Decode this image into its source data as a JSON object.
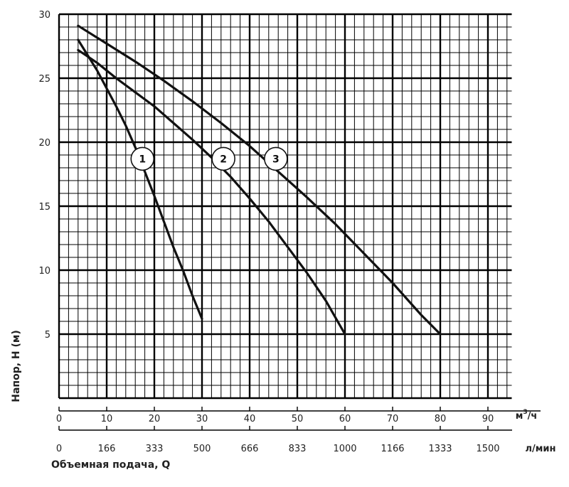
{
  "chart_data": {
    "type": "line",
    "title": "",
    "ylabel": "Напор, Н (м)",
    "xlabel": "Объемная подача, Q",
    "x_unit_primary": "м³/ч",
    "x_unit_primary_base": "м",
    "x_unit_primary_exp": "3",
    "x_unit_primary_tail": "/ч",
    "x_unit_secondary": "л/мин",
    "xlim": [
      0,
      95
    ],
    "ylim": [
      0,
      30
    ],
    "grid": true,
    "x_ticks_primary": [
      0,
      10,
      20,
      30,
      40,
      50,
      60,
      70,
      80,
      90
    ],
    "x_ticks_secondary": [
      {
        "x": 0,
        "label": "0"
      },
      {
        "x": 10,
        "label": "166"
      },
      {
        "x": 20,
        "label": "333"
      },
      {
        "x": 30,
        "label": "500"
      },
      {
        "x": 40,
        "label": "666"
      },
      {
        "x": 50,
        "label": "833"
      },
      {
        "x": 60,
        "label": "1000"
      },
      {
        "x": 70,
        "label": "1166"
      },
      {
        "x": 80,
        "label": "1333"
      },
      {
        "x": 90,
        "label": "1500"
      }
    ],
    "y_ticks": [
      5,
      10,
      15,
      20,
      25,
      30
    ],
    "series": [
      {
        "name": "1",
        "label_at": [
          17.5,
          18.7
        ],
        "points": [
          [
            4,
            28.0
          ],
          [
            6,
            26.8
          ],
          [
            8,
            25.6
          ],
          [
            10,
            24.2
          ],
          [
            12,
            22.8
          ],
          [
            14,
            21.3
          ],
          [
            16,
            19.6
          ],
          [
            18,
            17.7
          ],
          [
            20,
            15.8
          ],
          [
            22,
            13.8
          ],
          [
            24,
            11.8
          ],
          [
            26,
            10.0
          ],
          [
            28,
            8.0
          ],
          [
            30,
            6.2
          ]
        ]
      },
      {
        "name": "2",
        "label_at": [
          34.5,
          18.7
        ],
        "points": [
          [
            4,
            27.2
          ],
          [
            8,
            26.2
          ],
          [
            12,
            25.0
          ],
          [
            16,
            23.9
          ],
          [
            20,
            22.8
          ],
          [
            24,
            21.5
          ],
          [
            28,
            20.2
          ],
          [
            32,
            18.8
          ],
          [
            36,
            17.3
          ],
          [
            40,
            15.6
          ],
          [
            44,
            13.8
          ],
          [
            48,
            11.8
          ],
          [
            52,
            9.8
          ],
          [
            56,
            7.6
          ],
          [
            60,
            5.0
          ]
        ]
      },
      {
        "name": "3",
        "label_at": [
          45.5,
          18.7
        ],
        "points": [
          [
            4,
            29.1
          ],
          [
            10,
            27.7
          ],
          [
            16,
            26.3
          ],
          [
            22,
            24.8
          ],
          [
            28,
            23.2
          ],
          [
            34,
            21.5
          ],
          [
            40,
            19.7
          ],
          [
            46,
            17.7
          ],
          [
            52,
            15.7
          ],
          [
            58,
            13.6
          ],
          [
            64,
            11.3
          ],
          [
            70,
            9.0
          ],
          [
            76,
            6.5
          ],
          [
            80,
            5.0
          ]
        ]
      }
    ]
  }
}
